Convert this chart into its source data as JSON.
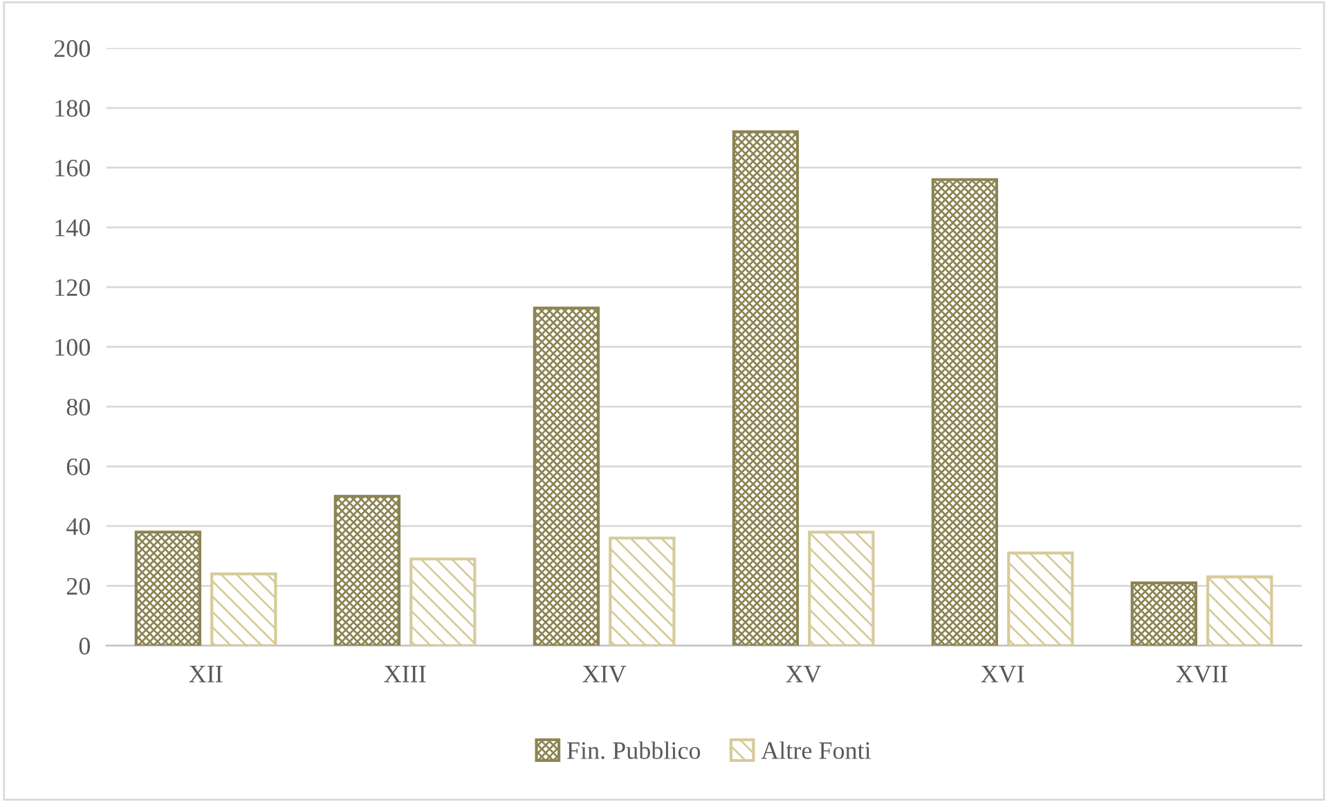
{
  "chart_data": {
    "type": "bar",
    "categories": [
      "XII",
      "XIII",
      "XIV",
      "XV",
      "XVI",
      "XVII"
    ],
    "series": [
      {
        "name": "Fin. Pubblico",
        "color": "#8c8454",
        "values": [
          38,
          50,
          113,
          172,
          156,
          21
        ]
      },
      {
        "name": "Altre Fonti",
        "color": "#d6cb9a",
        "values": [
          24,
          29,
          36,
          38,
          31,
          23
        ]
      }
    ],
    "ylim": [
      0,
      200
    ],
    "yticks": [
      0,
      20,
      40,
      60,
      80,
      100,
      120,
      140,
      160,
      180,
      200
    ],
    "grid": "y",
    "legend": "bottom"
  }
}
